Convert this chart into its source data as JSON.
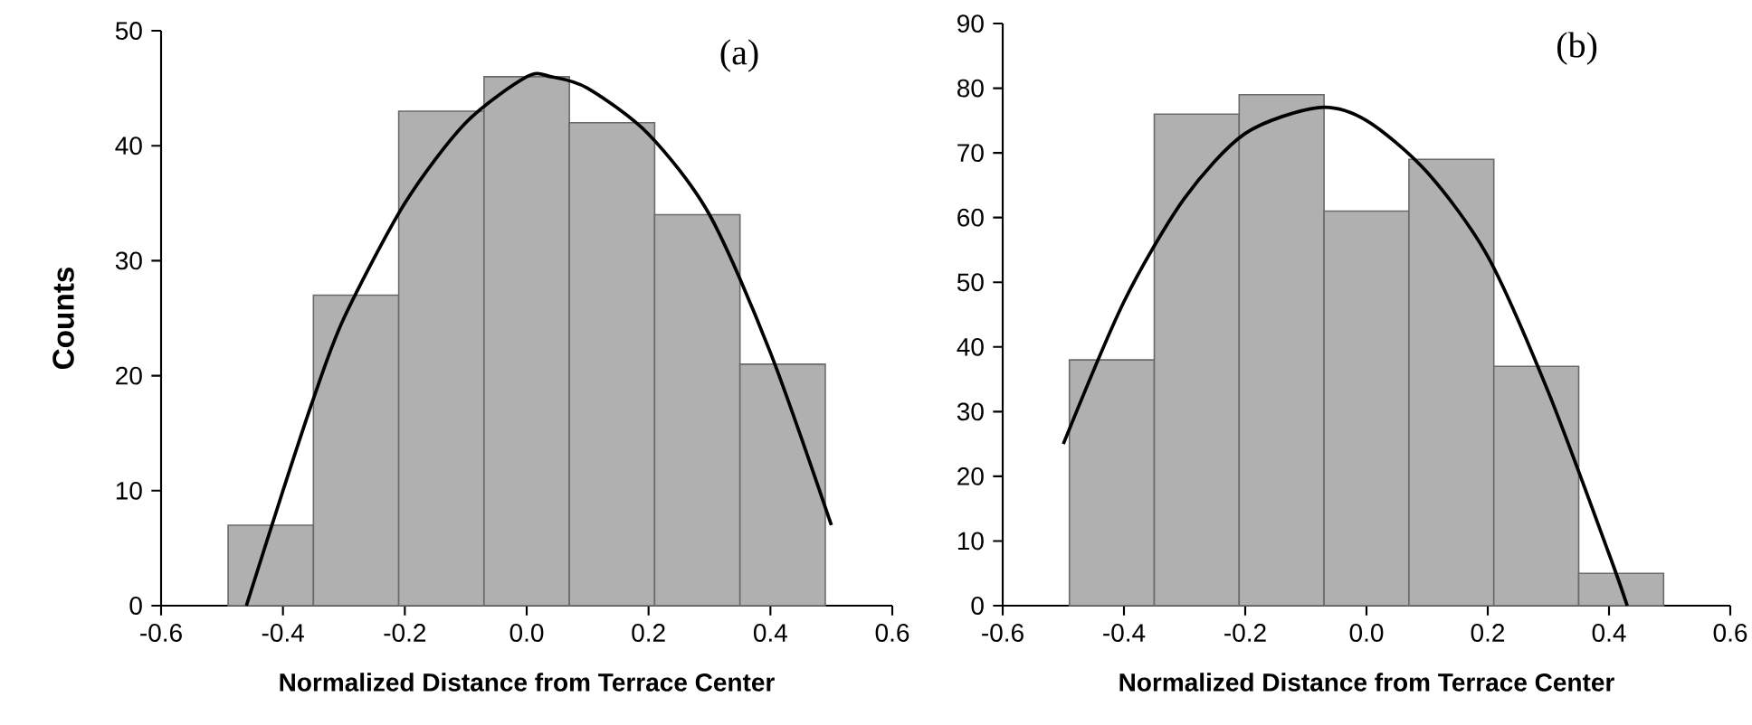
{
  "chart_data": [
    {
      "type": "histogram",
      "xlabel": "Normalized Distance from Terrace Center",
      "ylabel": "Counts",
      "annotations": [
        "(a)"
      ],
      "xlim": [
        -0.6,
        0.6
      ],
      "ylim": [
        0,
        50
      ],
      "xticks": [
        -0.6,
        -0.4,
        -0.2,
        {
          "value": 0,
          "label": "0.0"
        },
        0.2,
        0.4,
        0.6
      ],
      "yticks": [
        0,
        10,
        20,
        30,
        40,
        50
      ],
      "series": [
        {
          "color": "#b0b0b0",
          "bins": [
            -0.49,
            -0.35,
            -0.21,
            -0.07,
            0.07,
            0.21,
            0.35,
            0.49
          ],
          "values": [
            7,
            27,
            43,
            46,
            42,
            34,
            21
          ]
        },
        {
          "type": "line",
          "color": "#000000",
          "x": [
            -0.46,
            -0.4,
            -0.35,
            -0.3,
            -0.2,
            -0.1,
            0.0,
            0.04,
            0.1,
            0.2,
            0.3,
            0.4,
            0.5
          ],
          "values": [
            0,
            10,
            18,
            25,
            35,
            42,
            46,
            46,
            45,
            41,
            34,
            22,
            7
          ]
        }
      ]
    },
    {
      "type": "histogram",
      "xlabel": "Normalized Distance from Terrace Center",
      "annotations": [
        "(b)"
      ],
      "xlim": [
        -0.6,
        0.6
      ],
      "ylim": [
        0,
        90
      ],
      "xticks": [
        -0.6,
        -0.4,
        -0.2,
        {
          "value": 0,
          "label": "0.0"
        },
        0.2,
        0.4,
        0.6
      ],
      "yticks": [
        0,
        10,
        20,
        30,
        40,
        50,
        60,
        70,
        80,
        90
      ],
      "series": [
        {
          "color": "#b0b0b0",
          "bins": [
            -0.49,
            -0.35,
            -0.21,
            -0.07,
            0.07,
            0.21,
            0.35,
            0.49
          ],
          "values": [
            38,
            76,
            79,
            61,
            69,
            37,
            5
          ]
        },
        {
          "type": "line",
          "color": "#000000",
          "x": [
            -0.5,
            -0.4,
            -0.3,
            -0.2,
            -0.08,
            0.0,
            0.1,
            0.2,
            0.3,
            0.4,
            0.43
          ],
          "values": [
            25,
            47,
            63,
            73,
            77,
            75,
            67,
            54,
            33,
            8,
            0
          ]
        }
      ]
    }
  ]
}
